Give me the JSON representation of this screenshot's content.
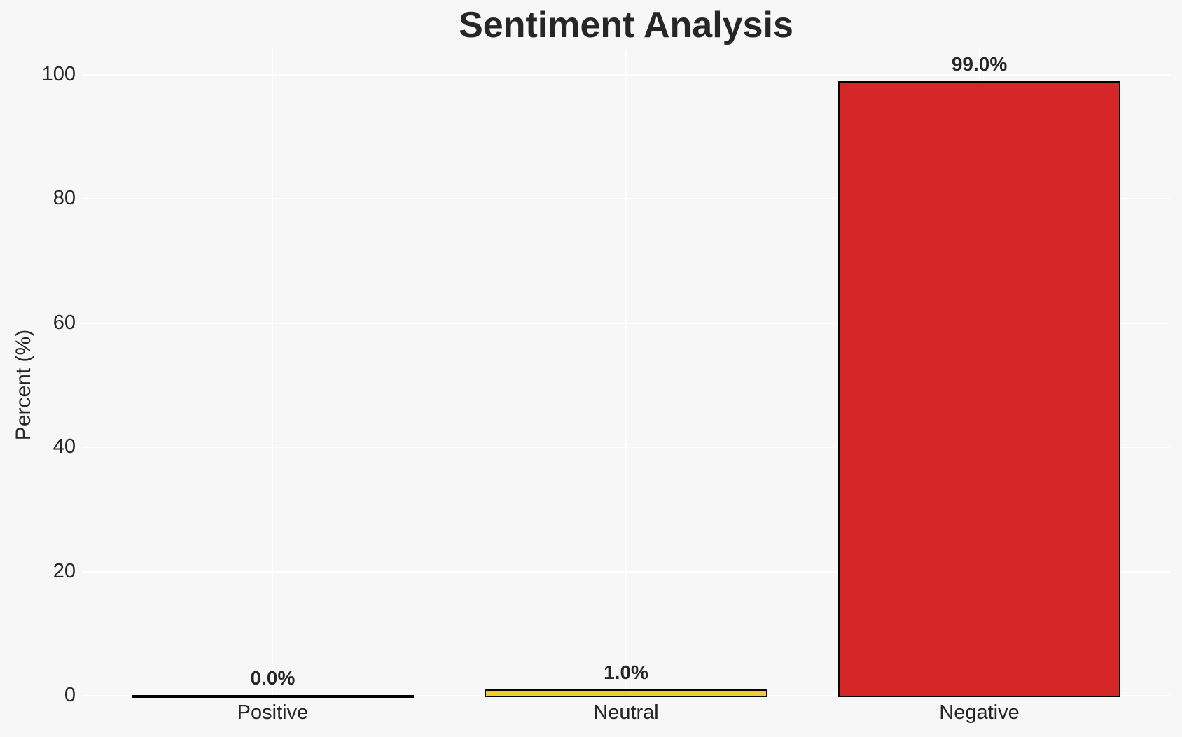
{
  "chart_data": {
    "type": "bar",
    "title": "Sentiment Analysis",
    "xlabel": "",
    "ylabel": "Percent (%)",
    "categories": [
      "Positive",
      "Neutral",
      "Negative"
    ],
    "values": [
      0.0,
      1.0,
      99.0
    ],
    "value_labels": [
      "0.0%",
      "1.0%",
      "99.0%"
    ],
    "colors": [
      null,
      "#F2CA32",
      "#D62728"
    ],
    "bar_edge_color": "#000000",
    "ylim": [
      0,
      100
    ],
    "yticks": [
      0,
      20,
      40,
      60,
      80,
      100
    ],
    "grid": true,
    "grid_color": "#FFFFFF",
    "background_color": "#F7F7F7",
    "text_color": "#262626",
    "legend": "none"
  }
}
